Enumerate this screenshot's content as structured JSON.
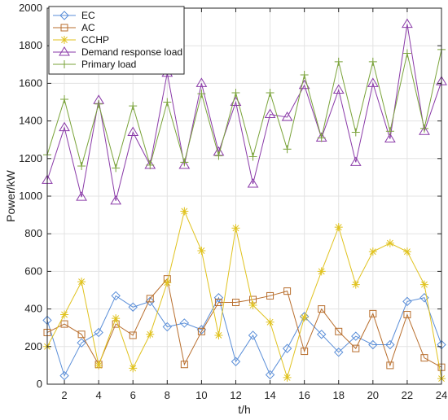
{
  "chart_data": {
    "type": "line",
    "title": "",
    "xlabel": "t/h",
    "ylabel": "Power/kW",
    "xlim": [
      1,
      24
    ],
    "ylim": [
      0,
      2000
    ],
    "x_ticks": [
      2,
      4,
      6,
      8,
      10,
      12,
      14,
      16,
      18,
      20,
      22,
      24
    ],
    "y_ticks": [
      0,
      200,
      400,
      600,
      800,
      1000,
      1200,
      1400,
      1600,
      1800,
      2000
    ],
    "grid": true,
    "legend_position": "top-left",
    "x": [
      1,
      2,
      3,
      4,
      5,
      6,
      7,
      8,
      9,
      10,
      11,
      12,
      13,
      14,
      15,
      16,
      17,
      18,
      19,
      20,
      21,
      22,
      23,
      24
    ],
    "series": [
      {
        "name": "EC",
        "color": "#5a8ed8",
        "marker": "diamond",
        "values": [
          340,
          45,
          220,
          275,
          470,
          410,
          440,
          305,
          325,
          290,
          460,
          120,
          260,
          50,
          190,
          360,
          265,
          170,
          255,
          210,
          210,
          440,
          460,
          210
        ]
      },
      {
        "name": "AC",
        "color": "#b86e2d",
        "marker": "square",
        "values": [
          275,
          320,
          265,
          105,
          320,
          260,
          455,
          560,
          105,
          280,
          435,
          435,
          450,
          470,
          495,
          175,
          400,
          280,
          190,
          375,
          100,
          370,
          140,
          90
        ]
      },
      {
        "name": "CCHP",
        "color": "#e0c21e",
        "marker": "asterisk",
        "values": [
          200,
          370,
          545,
          100,
          350,
          85,
          265,
          540,
          920,
          710,
          260,
          830,
          420,
          330,
          35,
          355,
          600,
          835,
          530,
          705,
          750,
          705,
          530,
          30
        ]
      },
      {
        "name": "Demand response load",
        "color": "#8a3aa8",
        "marker": "triangle",
        "values": [
          1085,
          1365,
          995,
          1510,
          975,
          1340,
          1165,
          1655,
          1165,
          1600,
          1235,
          1500,
          1065,
          1435,
          1420,
          1590,
          1310,
          1565,
          1180,
          1600,
          1305,
          1915,
          1345,
          1610
        ]
      },
      {
        "name": "Primary load",
        "color": "#7aa33a",
        "marker": "plus",
        "values": [
          1220,
          1515,
          1160,
          1490,
          1150,
          1480,
          1165,
          1500,
          1180,
          1545,
          1215,
          1550,
          1210,
          1550,
          1250,
          1645,
          1310,
          1715,
          1340,
          1715,
          1345,
          1760,
          1360,
          1780
        ]
      }
    ]
  }
}
